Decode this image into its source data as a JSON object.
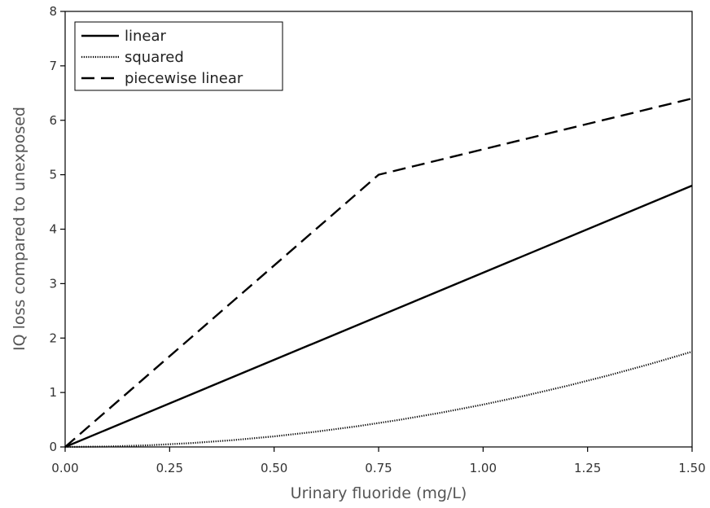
{
  "chart_data": {
    "type": "line",
    "xlabel": "Urinary fluoride (mg/L)",
    "ylabel": "IQ loss compared to unexposed",
    "xlim": [
      0,
      1.5
    ],
    "ylim": [
      0,
      8
    ],
    "x_ticks": [
      "0.00",
      "0.25",
      "0.50",
      "0.75",
      "1.00",
      "1.25",
      "1.50"
    ],
    "y_ticks": [
      "0",
      "1",
      "2",
      "3",
      "4",
      "5",
      "6",
      "7",
      "8"
    ],
    "grid": false,
    "legend_position": "top-left",
    "series": [
      {
        "name": "linear",
        "style": "solid",
        "x": [
          0,
          1.5
        ],
        "y": [
          0,
          4.8
        ]
      },
      {
        "name": "squared",
        "style": "dotted",
        "x": [
          0,
          0.1,
          0.2,
          0.3,
          0.4,
          0.5,
          0.6,
          0.7,
          0.8,
          0.9,
          1.0,
          1.1,
          1.2,
          1.3,
          1.4,
          1.5
        ],
        "y": [
          0,
          0.008,
          0.031,
          0.07,
          0.124,
          0.194,
          0.28,
          0.381,
          0.498,
          0.63,
          0.778,
          0.941,
          1.12,
          1.314,
          1.524,
          1.75
        ]
      },
      {
        "name": "piecewise linear",
        "style": "dashed",
        "x": [
          0,
          0.75,
          1.5
        ],
        "y": [
          0,
          5.0,
          6.4
        ]
      }
    ]
  }
}
